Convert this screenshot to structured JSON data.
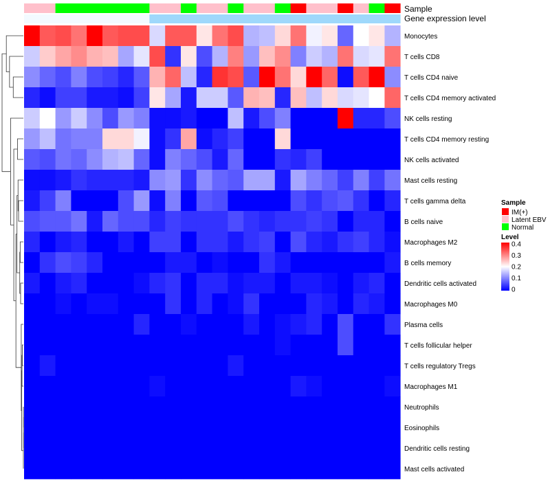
{
  "chart_data": {
    "type": "heatmap",
    "title": "",
    "annotation_titles": {
      "sample": "Sample",
      "level": "Gene expression level"
    },
    "rows": [
      "Monocytes",
      "T cells CD8",
      "T cells CD4 naive",
      "T cells CD4 memory activated",
      "NK cells resting",
      "T cells CD4 memory resting",
      "NK cells activated",
      "Mast cells resting",
      "T cells gamma delta",
      "B cells naive",
      "Macrophages M2",
      "B cells memory",
      "Dendritic cells activated",
      "Macrophages M0",
      "Plasma cells",
      "T cells follicular helper",
      "T cells regulatory  Tregs",
      "Macrophages M1",
      "Neutrophils",
      "Eosinophils",
      "Dendritic cells resting",
      "Mast cells activated"
    ],
    "column_sample": [
      "Latent EBV",
      "Latent EBV",
      "Normal",
      "Normal",
      "Normal",
      "Normal",
      "Normal",
      "Normal",
      "Latent EBV",
      "Latent EBV",
      "Normal",
      "Latent EBV",
      "Latent EBV",
      "Normal",
      "Latent EBV",
      "Latent EBV",
      "Normal",
      "IM(+)",
      "Latent EBV",
      "Latent EBV",
      "IM(+)",
      "Latent EBV",
      "Normal",
      "IM(+)"
    ],
    "column_level": [
      0.19,
      0.19,
      0.19,
      0.19,
      0.19,
      0.19,
      0.19,
      0.19,
      0.12,
      0.12,
      0.12,
      0.12,
      0.12,
      0.12,
      0.12,
      0.12,
      0.12,
      0.12,
      0.12,
      0.12,
      0.12,
      0.12,
      0.12,
      0.12
    ],
    "values": [
      [
        0.4,
        0.33,
        0.34,
        0.31,
        0.4,
        0.33,
        0.34,
        0.34,
        0.17,
        0.33,
        0.33,
        0.22,
        0.31,
        0.34,
        0.14,
        0.15,
        0.23,
        0.31,
        0.19,
        0.22,
        0.08,
        0.2,
        0.22,
        0.14
      ],
      [
        0.16,
        0.24,
        0.27,
        0.29,
        0.26,
        0.25,
        0.13,
        0.18,
        0.34,
        0.04,
        0.22,
        0.06,
        0.14,
        0.3,
        0.12,
        0.25,
        0.29,
        0.1,
        0.16,
        0.14,
        0.31,
        0.17,
        0.18,
        0.31
      ],
      [
        0.11,
        0.08,
        0.06,
        0.1,
        0.06,
        0.05,
        0.03,
        0.07,
        0.26,
        0.32,
        0.15,
        0.03,
        0.36,
        0.34,
        0.07,
        0.4,
        0.31,
        0.23,
        0.4,
        0.32,
        0.01,
        0.33,
        0.4,
        0.11
      ],
      [
        0.03,
        0.01,
        0.05,
        0.05,
        0.02,
        0.02,
        0.01,
        0.05,
        0.22,
        0.13,
        0.02,
        0.16,
        0.16,
        0.07,
        0.26,
        0.25,
        0.03,
        0.25,
        0.15,
        0.23,
        0.17,
        0.18,
        0.2,
        0.32
      ],
      [
        0.16,
        0.2,
        0.12,
        0.16,
        0.11,
        0.06,
        0.12,
        0.1,
        0.01,
        0.01,
        0.02,
        0.0,
        0.0,
        0.15,
        0.02,
        0.06,
        0.1,
        0.0,
        0.0,
        0.0,
        0.4,
        0.03,
        0.03,
        0.06
      ],
      [
        0.12,
        0.15,
        0.09,
        0.1,
        0.1,
        0.23,
        0.23,
        0.19,
        0.01,
        0.04,
        0.27,
        0.01,
        0.03,
        0.05,
        0.0,
        0.0,
        0.23,
        0.0,
        0.0,
        0.0,
        0.0,
        0.0,
        0.0,
        0.0
      ],
      [
        0.07,
        0.06,
        0.09,
        0.08,
        0.11,
        0.14,
        0.15,
        0.08,
        0.01,
        0.1,
        0.08,
        0.06,
        0.02,
        0.08,
        0.0,
        0.0,
        0.04,
        0.03,
        0.05,
        0.0,
        0.0,
        0.0,
        0.0,
        0.0
      ],
      [
        0.01,
        0.01,
        0.02,
        0.04,
        0.03,
        0.03,
        0.03,
        0.02,
        0.11,
        0.12,
        0.04,
        0.11,
        0.08,
        0.07,
        0.13,
        0.13,
        0.02,
        0.13,
        0.1,
        0.08,
        0.05,
        0.1,
        0.05,
        0.09
      ],
      [
        0.02,
        0.05,
        0.1,
        0.0,
        0.0,
        0.0,
        0.06,
        0.12,
        0.01,
        0.1,
        0.0,
        0.07,
        0.06,
        0.0,
        0.0,
        0.0,
        0.0,
        0.06,
        0.04,
        0.06,
        0.07,
        0.04,
        0.0,
        0.03
      ],
      [
        0.06,
        0.07,
        0.07,
        0.09,
        0.02,
        0.08,
        0.06,
        0.06,
        0.03,
        0.05,
        0.04,
        0.04,
        0.04,
        0.06,
        0.04,
        0.03,
        0.04,
        0.04,
        0.05,
        0.04,
        0.0,
        0.03,
        0.03,
        0.0
      ],
      [
        0.03,
        0.0,
        0.02,
        0.03,
        0.0,
        0.0,
        0.02,
        0.0,
        0.05,
        0.05,
        0.0,
        0.04,
        0.04,
        0.02,
        0.04,
        0.05,
        0.0,
        0.06,
        0.03,
        0.02,
        0.04,
        0.05,
        0.03,
        0.01
      ],
      [
        0.0,
        0.04,
        0.06,
        0.05,
        0.03,
        0.0,
        0.0,
        0.0,
        0.0,
        0.02,
        0.02,
        0.0,
        0.01,
        0.0,
        0.0,
        0.04,
        0.02,
        0.0,
        0.0,
        0.0,
        0.0,
        0.0,
        0.0,
        0.02
      ],
      [
        0.02,
        0.0,
        0.02,
        0.03,
        0.0,
        0.0,
        0.0,
        0.01,
        0.03,
        0.04,
        0.0,
        0.03,
        0.03,
        0.01,
        0.02,
        0.02,
        0.0,
        0.02,
        0.02,
        0.01,
        0.0,
        0.02,
        0.03,
        0.0
      ],
      [
        0.0,
        0.0,
        0.01,
        0.0,
        0.01,
        0.01,
        0.0,
        0.0,
        0.0,
        0.04,
        0.0,
        0.03,
        0.0,
        0.01,
        0.04,
        0.0,
        0.0,
        0.0,
        0.03,
        0.02,
        0.0,
        0.03,
        0.02,
        0.0
      ],
      [
        0.0,
        0.0,
        0.0,
        0.0,
        0.0,
        0.0,
        0.0,
        0.03,
        0.0,
        0.0,
        0.01,
        0.0,
        0.0,
        0.0,
        0.02,
        0.0,
        0.01,
        0.02,
        0.03,
        0.0,
        0.06,
        0.0,
        0.0,
        0.04
      ],
      [
        0.0,
        0.0,
        0.0,
        0.0,
        0.0,
        0.0,
        0.0,
        0.0,
        0.0,
        0.0,
        0.0,
        0.0,
        0.0,
        0.0,
        0.0,
        0.0,
        0.01,
        0.0,
        0.0,
        0.0,
        0.06,
        0.0,
        0.0,
        0.0
      ],
      [
        0.0,
        0.02,
        0.0,
        0.0,
        0.0,
        0.0,
        0.0,
        0.0,
        0.0,
        0.0,
        0.0,
        0.0,
        0.0,
        0.02,
        0.0,
        0.0,
        0.0,
        0.0,
        0.0,
        0.0,
        0.0,
        0.0,
        0.0,
        0.0
      ],
      [
        0.0,
        0.0,
        0.0,
        0.0,
        0.0,
        0.0,
        0.0,
        0.0,
        0.01,
        0.0,
        0.0,
        0.0,
        0.0,
        0.0,
        0.0,
        0.0,
        0.0,
        0.02,
        0.01,
        0.0,
        0.0,
        0.0,
        0.0,
        0.01
      ],
      [
        0.0,
        0.0,
        0.0,
        0.0,
        0.0,
        0.0,
        0.0,
        0.0,
        0.0,
        0.0,
        0.0,
        0.0,
        0.0,
        0.0,
        0.0,
        0.0,
        0.0,
        0.0,
        0.0,
        0.0,
        0.0,
        0.0,
        0.0,
        0.0
      ],
      [
        0.0,
        0.0,
        0.0,
        0.0,
        0.0,
        0.0,
        0.0,
        0.0,
        0.0,
        0.0,
        0.0,
        0.0,
        0.0,
        0.0,
        0.0,
        0.0,
        0.0,
        0.0,
        0.0,
        0.0,
        0.0,
        0.0,
        0.0,
        0.0
      ],
      [
        0.0,
        0.0,
        0.0,
        0.0,
        0.0,
        0.0,
        0.0,
        0.0,
        0.0,
        0.0,
        0.0,
        0.0,
        0.0,
        0.0,
        0.0,
        0.0,
        0.0,
        0.0,
        0.0,
        0.0,
        0.0,
        0.0,
        0.0,
        0.0
      ],
      [
        0.0,
        0.0,
        0.0,
        0.0,
        0.0,
        0.0,
        0.0,
        0.0,
        0.0,
        0.0,
        0.0,
        0.0,
        0.0,
        0.0,
        0.0,
        0.0,
        0.0,
        0.0,
        0.0,
        0.0,
        0.0,
        0.0,
        0.0,
        0.0
      ]
    ],
    "color_scale": {
      "min": 0.0,
      "mid": 0.2,
      "max": 0.4,
      "low_color": "#0000ff",
      "mid_color": "#ffffff",
      "high_color": "#ff0000"
    },
    "level_scale": {
      "min": 0.1,
      "max": 0.2,
      "low_color": "#87cefa",
      "high_color": "#ffffff"
    },
    "legend": {
      "sample": {
        "title": "Sample",
        "items": [
          {
            "label": "IM(+)",
            "color": "#ff0000"
          },
          {
            "label": "Latent EBV",
            "color": "#ffc0cb"
          },
          {
            "label": "Normal",
            "color": "#00ff00"
          }
        ]
      },
      "level": {
        "title": "Level",
        "ticks": [
          0.4,
          0.3,
          0.2,
          0.1,
          0
        ]
      }
    },
    "dendrogram": {
      "merges": [
        [
          18,
          19,
          0.0
        ],
        [
          -1,
          20,
          0.0
        ],
        [
          -2,
          21,
          0.0
        ],
        [
          15,
          16,
          0.01
        ],
        [
          -4,
          17,
          0.013
        ],
        [
          -5,
          -3,
          0.016
        ],
        [
          14,
          -6,
          0.02
        ],
        [
          12,
          13,
          0.026
        ],
        [
          10,
          11,
          0.03
        ],
        [
          -9,
          -8,
          0.034
        ],
        [
          8,
          9,
          0.045
        ],
        [
          -11,
          7,
          0.05
        ],
        [
          -12,
          -10,
          0.06
        ],
        [
          -13,
          -7,
          0.07
        ],
        [
          5,
          6,
          0.055
        ],
        [
          -15,
          -14,
          0.09
        ],
        [
          4,
          -16,
          0.12
        ],
        [
          2,
          3,
          0.095
        ],
        [
          1,
          -18,
          0.13
        ],
        [
          0,
          -19,
          0.16
        ],
        [
          -20,
          -17,
          0.2
        ]
      ]
    }
  }
}
